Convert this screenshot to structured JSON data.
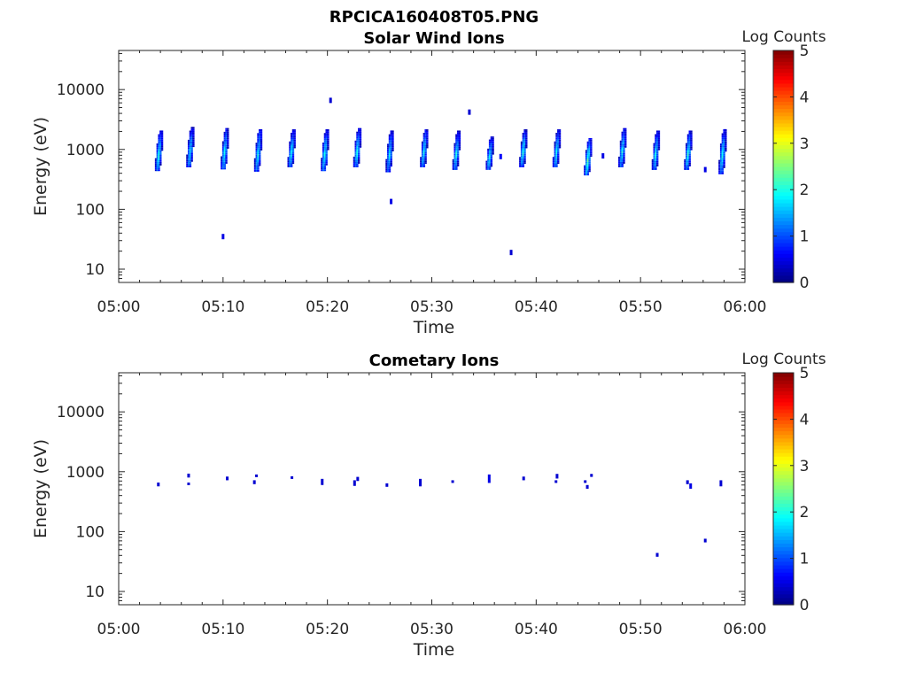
{
  "figure_title": "RPCICA160408T05.PNG",
  "colors": {
    "axis": "#262626",
    "background": "#ffffff",
    "colormap": [
      "#00007f",
      "#0000ff",
      "#007fff",
      "#00ffff",
      "#7fff7f",
      "#ffff00",
      "#ff7f00",
      "#ff0000",
      "#7f0000"
    ]
  },
  "chart_data": [
    {
      "type": "heatmap",
      "title": "Solar Wind Ions",
      "xlabel": "Time",
      "ylabel": "Energy (eV)",
      "colorbar_label": "Log Counts",
      "colorbar_ticks": [
        "0",
        "1",
        "2",
        "3",
        "4",
        "5"
      ],
      "clim": [
        0,
        5
      ],
      "x_ticks": [
        "05:00",
        "05:10",
        "05:20",
        "05:30",
        "05:40",
        "05:50",
        "06:00"
      ],
      "xlim_minutes_after_0500": [
        0,
        60
      ],
      "y_scale": "log",
      "y_ticks": [
        "10",
        "100",
        "1000",
        "10000"
      ],
      "ylim": [
        6,
        45000
      ],
      "sweeps": [
        {
          "t": 3.9,
          "e_low": 450,
          "e_high": 2000,
          "peak": 2.1
        },
        {
          "t": 6.9,
          "e_low": 520,
          "e_high": 2300,
          "peak": 1.9
        },
        {
          "t": 10.2,
          "e_low": 480,
          "e_high": 2200,
          "peak": 2.0
        },
        {
          "t": 13.4,
          "e_low": 440,
          "e_high": 2100,
          "peak": 2.0
        },
        {
          "t": 16.6,
          "e_low": 520,
          "e_high": 2100,
          "peak": 2.0
        },
        {
          "t": 19.8,
          "e_low": 450,
          "e_high": 2100,
          "peak": 2.1
        },
        {
          "t": 22.9,
          "e_low": 520,
          "e_high": 2200,
          "peak": 2.0
        },
        {
          "t": 26.0,
          "e_low": 430,
          "e_high": 2000,
          "peak": 1.9
        },
        {
          "t": 29.3,
          "e_low": 520,
          "e_high": 2100,
          "peak": 2.0
        },
        {
          "t": 32.4,
          "e_low": 470,
          "e_high": 2000,
          "peak": 2.0
        },
        {
          "t": 35.6,
          "e_low": 470,
          "e_high": 1600,
          "peak": 2.0
        },
        {
          "t": 38.8,
          "e_low": 520,
          "e_high": 2100,
          "peak": 2.1
        },
        {
          "t": 42.0,
          "e_low": 520,
          "e_high": 2100,
          "peak": 2.0
        },
        {
          "t": 45.0,
          "e_low": 380,
          "e_high": 1500,
          "peak": 2.4
        },
        {
          "t": 48.3,
          "e_low": 520,
          "e_high": 2200,
          "peak": 2.0
        },
        {
          "t": 51.5,
          "e_low": 470,
          "e_high": 2000,
          "peak": 2.0
        },
        {
          "t": 54.6,
          "e_low": 470,
          "e_high": 2000,
          "peak": 2.1
        },
        {
          "t": 57.9,
          "e_low": 400,
          "e_high": 2100,
          "peak": 2.0
        }
      ],
      "isolated_pixels": [
        {
          "t": 10.0,
          "e": 35,
          "v": 0.5
        },
        {
          "t": 20.3,
          "e": 6600,
          "v": 0.4
        },
        {
          "t": 26.1,
          "e": 135,
          "v": 0.5
        },
        {
          "t": 33.6,
          "e": 4200,
          "v": 0.4
        },
        {
          "t": 37.6,
          "e": 19,
          "v": 0.4
        },
        {
          "t": 46.4,
          "e": 780,
          "v": 0.5
        },
        {
          "t": 56.2,
          "e": 460,
          "v": 0.5
        },
        {
          "t": 36.6,
          "e": 760,
          "v": 0.6
        }
      ]
    },
    {
      "type": "heatmap",
      "title": "Cometary Ions",
      "xlabel": "Time",
      "ylabel": "Energy (eV)",
      "colorbar_label": "Log Counts",
      "colorbar_ticks": [
        "0",
        "1",
        "2",
        "3",
        "4",
        "5"
      ],
      "clim": [
        0,
        5
      ],
      "x_ticks": [
        "05:00",
        "05:10",
        "05:20",
        "05:30",
        "05:40",
        "05:50",
        "06:00"
      ],
      "xlim_minutes_after_0500": [
        0,
        60
      ],
      "y_scale": "log",
      "y_ticks": [
        "10",
        "100",
        "1000",
        "10000"
      ],
      "ylim": [
        6,
        45000
      ],
      "pixels": [
        {
          "t": 3.8,
          "e_low": 570,
          "e_high": 660,
          "v": 0.4
        },
        {
          "t": 6.7,
          "e_low": 800,
          "e_high": 930,
          "v": 0.4
        },
        {
          "t": 6.7,
          "e_low": 610,
          "e_high": 660,
          "v": 0.4
        },
        {
          "t": 10.4,
          "e_low": 720,
          "e_high": 830,
          "v": 0.4
        },
        {
          "t": 13.2,
          "e_low": 830,
          "e_high": 900,
          "v": 0.4
        },
        {
          "t": 13.0,
          "e_low": 620,
          "e_high": 720,
          "v": 0.4
        },
        {
          "t": 16.6,
          "e_low": 780,
          "e_high": 840,
          "v": 0.4
        },
        {
          "t": 19.5,
          "e_low": 600,
          "e_high": 760,
          "v": 0.4
        },
        {
          "t": 22.6,
          "e_low": 580,
          "e_high": 720,
          "v": 0.4
        },
        {
          "t": 22.9,
          "e_low": 700,
          "e_high": 820,
          "v": 0.4
        },
        {
          "t": 25.7,
          "e_low": 560,
          "e_high": 640,
          "v": 0.4
        },
        {
          "t": 28.9,
          "e_low": 570,
          "e_high": 760,
          "v": 0.4
        },
        {
          "t": 32.0,
          "e_low": 650,
          "e_high": 720,
          "v": 0.4
        },
        {
          "t": 35.5,
          "e_low": 650,
          "e_high": 900,
          "v": 0.5
        },
        {
          "t": 38.8,
          "e_low": 720,
          "e_high": 830,
          "v": 0.4
        },
        {
          "t": 42.0,
          "e_low": 770,
          "e_high": 920,
          "v": 0.4
        },
        {
          "t": 41.9,
          "e_low": 660,
          "e_high": 720,
          "v": 0.4
        },
        {
          "t": 44.7,
          "e_low": 680,
          "e_high": 720,
          "v": 0.4
        },
        {
          "t": 44.9,
          "e_low": 520,
          "e_high": 600,
          "v": 0.4
        },
        {
          "t": 45.3,
          "e_low": 820,
          "e_high": 920,
          "v": 0.4
        },
        {
          "t": 51.6,
          "e_low": 38,
          "e_high": 44,
          "v": 0.4
        },
        {
          "t": 54.5,
          "e_low": 620,
          "e_high": 720,
          "v": 0.4
        },
        {
          "t": 54.8,
          "e_low": 520,
          "e_high": 640,
          "v": 0.5
        },
        {
          "t": 56.2,
          "e_low": 66,
          "e_high": 76,
          "v": 0.4
        },
        {
          "t": 57.7,
          "e_low": 570,
          "e_high": 720,
          "v": 0.4
        }
      ]
    }
  ]
}
